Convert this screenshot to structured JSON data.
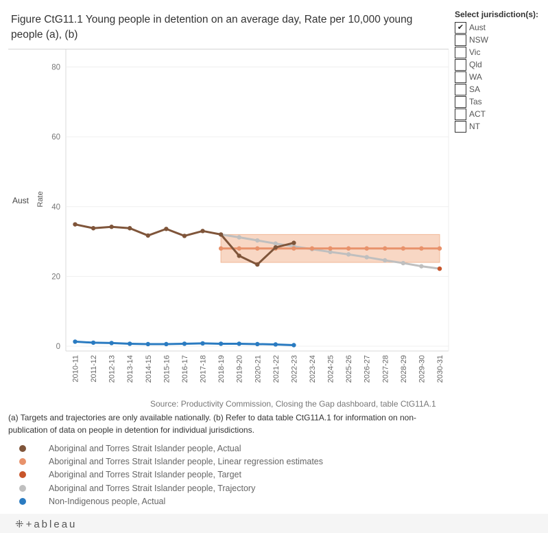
{
  "title": "Figure CtG11.1 Young people in detention on an average day, Rate per 10,000 young people (a), (b)",
  "filter": {
    "title": "Select jurisdiction(s):",
    "items": [
      {
        "label": "Aust",
        "checked": true,
        "mark": "✔"
      },
      {
        "label": "NSW",
        "checked": false,
        "mark": ""
      },
      {
        "label": "Vic",
        "checked": false,
        "mark": ""
      },
      {
        "label": "Qld",
        "checked": false,
        "mark": ""
      },
      {
        "label": "WA",
        "checked": false,
        "mark": ""
      },
      {
        "label": "SA",
        "checked": false,
        "mark": ""
      },
      {
        "label": "Tas",
        "checked": false,
        "mark": ""
      },
      {
        "label": "ACT",
        "checked": false,
        "mark": ""
      },
      {
        "label": "NT",
        "checked": false,
        "mark": ""
      }
    ]
  },
  "chart_data": {
    "type": "line",
    "row_label": "Aust",
    "ylabel": "Rate",
    "ylim": [
      0,
      80
    ],
    "yticks": [
      0,
      20,
      40,
      60,
      80
    ],
    "categories": [
      "2010-11",
      "2011-12",
      "2012-13",
      "2013-14",
      "2014-15",
      "2015-16",
      "2016-17",
      "2017-18",
      "2018-19",
      "2019-20",
      "2020-21",
      "2021-22",
      "2022-23",
      "2023-24",
      "2024-25",
      "2025-26",
      "2026-27",
      "2027-28",
      "2028-29",
      "2029-30",
      "2030-31"
    ],
    "band": {
      "name": "Linear regression estimates range",
      "start": "2018-19",
      "end": "2030-31",
      "low": 24,
      "high": 32,
      "color": "#f8d7c4"
    },
    "series": [
      {
        "name": "Aboriginal and Torres Strait Islander people, Trajectory",
        "color": "#bfbfbf",
        "values": [
          null,
          null,
          null,
          null,
          null,
          null,
          null,
          null,
          32,
          31.2,
          30.3,
          29.4,
          28.6,
          27.8,
          27.0,
          26.3,
          25.5,
          24.6,
          23.8,
          22.9,
          22.2
        ]
      },
      {
        "name": "Aboriginal and Torres Strait Islander people, Linear regression estimates",
        "color": "#e8926b",
        "values": [
          null,
          null,
          null,
          null,
          null,
          null,
          null,
          null,
          28,
          28,
          28,
          28,
          28,
          28,
          28,
          28,
          28,
          28,
          28,
          28,
          28
        ]
      },
      {
        "name": "Aboriginal and Torres Strait Islander people, Actual",
        "color": "#7f553a",
        "values": [
          34.9,
          33.8,
          34.2,
          33.8,
          31.7,
          33.6,
          31.6,
          33.0,
          32.0,
          25.9,
          23.4,
          28.3,
          29.6,
          null,
          null,
          null,
          null,
          null,
          null,
          null,
          null
        ]
      },
      {
        "name": "Aboriginal and Torres Strait Islander people, Target",
        "color": "#c8552a",
        "values": [
          null,
          null,
          null,
          null,
          null,
          null,
          null,
          null,
          null,
          null,
          null,
          null,
          null,
          null,
          null,
          null,
          null,
          null,
          null,
          null,
          22.2
        ]
      },
      {
        "name": "Non-Indigenous people, Actual",
        "color": "#2a7bc1",
        "values": [
          1.3,
          1.0,
          0.9,
          0.7,
          0.6,
          0.6,
          0.7,
          0.8,
          0.7,
          0.7,
          0.6,
          0.5,
          0.3,
          null,
          null,
          null,
          null,
          null,
          null,
          null,
          null
        ]
      }
    ]
  },
  "source": "Source: Productivity Commission, Closing the Gap dashboard, table CtG11A.1",
  "footnote": "(a) Targets and trajectories are only available nationally. (b) Refer to data table CtG11A.1 for information on non-publication of data on people in detention for individual jurisdictions.",
  "legend": [
    {
      "label": "Aboriginal and Torres Strait Islander people, Actual",
      "color": "#7f553a"
    },
    {
      "label": "Aboriginal and Torres Strait Islander people, Linear regression estimates",
      "color": "#e8926b"
    },
    {
      "label": "Aboriginal and Torres Strait Islander people, Target",
      "color": "#c8552a"
    },
    {
      "label": "Aboriginal and Torres Strait Islander people, Trajectory",
      "color": "#bfbfbf"
    },
    {
      "label": "Non-Indigenous people, Actual",
      "color": "#2a7bc1"
    }
  ],
  "footer": {
    "logo": "⁜+ableau"
  }
}
